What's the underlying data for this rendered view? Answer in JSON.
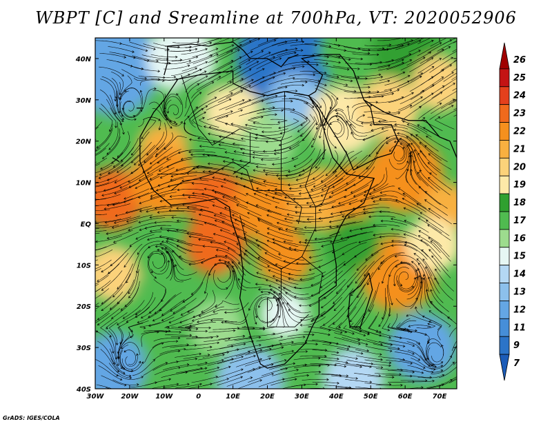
{
  "title": "WBPT [C] and Sreamline at 700hPa, VT: 2020052906",
  "credit": "GrADS: IGES/COLA",
  "map": {
    "lon_min": -30,
    "lon_max": 75,
    "lat_min": -40,
    "lat_max": 45,
    "lat_ticks": [
      {
        "value": 40,
        "label": "40N"
      },
      {
        "value": 30,
        "label": "30N"
      },
      {
        "value": 20,
        "label": "20N"
      },
      {
        "value": 10,
        "label": "10N"
      },
      {
        "value": 0,
        "label": "EQ"
      },
      {
        "value": -10,
        "label": "10S"
      },
      {
        "value": -20,
        "label": "20S"
      },
      {
        "value": -30,
        "label": "30S"
      },
      {
        "value": -40,
        "label": "40S"
      }
    ],
    "lon_ticks": [
      {
        "value": -30,
        "label": "30W"
      },
      {
        "value": -20,
        "label": "20W"
      },
      {
        "value": -10,
        "label": "10W"
      },
      {
        "value": 0,
        "label": "0"
      },
      {
        "value": 10,
        "label": "10E"
      },
      {
        "value": 20,
        "label": "20E"
      },
      {
        "value": 30,
        "label": "30E"
      },
      {
        "value": 40,
        "label": "40E"
      },
      {
        "value": 50,
        "label": "50E"
      },
      {
        "value": 60,
        "label": "60E"
      },
      {
        "value": 70,
        "label": "70E"
      }
    ]
  },
  "colorbar": {
    "levels": [
      {
        "label": "26",
        "color": "#a00000"
      },
      {
        "label": "25",
        "color": "#c41414"
      },
      {
        "label": "24",
        "color": "#e4401c"
      },
      {
        "label": "23",
        "color": "#f06a1c"
      },
      {
        "label": "22",
        "color": "#f5901e"
      },
      {
        "label": "21",
        "color": "#f8b040"
      },
      {
        "label": "20",
        "color": "#fbd27a"
      },
      {
        "label": "19",
        "color": "#fde9a8"
      },
      {
        "label": "18",
        "color": "#30a030"
      },
      {
        "label": "17",
        "color": "#50bb50"
      },
      {
        "label": "16",
        "color": "#9ddc8e"
      },
      {
        "label": "15",
        "color": "#e6f7f4"
      },
      {
        "label": "14",
        "color": "#b4d8f4"
      },
      {
        "label": "13",
        "color": "#8cc0ec"
      },
      {
        "label": "12",
        "color": "#64a6e4"
      },
      {
        "label": "11",
        "color": "#468ed8"
      },
      {
        "label": "9",
        "color": "#2c74c8"
      },
      {
        "label": "7",
        "color": "#1c5cb8"
      }
    ]
  },
  "regions": [
    {
      "lon": -25,
      "lat": 38,
      "r": 14,
      "level": "12"
    },
    {
      "lon": -5,
      "lat": 40,
      "r": 10,
      "level": "15"
    },
    {
      "lon": 25,
      "lat": 40,
      "r": 14,
      "level": "9"
    },
    {
      "lon": 45,
      "lat": 42,
      "r": 10,
      "level": "17"
    },
    {
      "lon": 60,
      "lat": 42,
      "r": 10,
      "level": "18"
    },
    {
      "lon": 70,
      "lat": 34,
      "r": 8,
      "level": "20"
    },
    {
      "lon": 0,
      "lat": 28,
      "r": 9,
      "level": "17"
    },
    {
      "lon": 10,
      "lat": 27,
      "r": 8,
      "level": "19"
    },
    {
      "lon": 28,
      "lat": 30,
      "r": 8,
      "level": "13"
    },
    {
      "lon": 42,
      "lat": 25,
      "r": 10,
      "level": "19"
    },
    {
      "lon": 55,
      "lat": 28,
      "r": 9,
      "level": "20"
    },
    {
      "lon": -18,
      "lat": 20,
      "r": 9,
      "level": "17"
    },
    {
      "lon": -10,
      "lat": 18,
      "r": 7,
      "level": "21"
    },
    {
      "lon": 20,
      "lat": 20,
      "r": 8,
      "level": "16"
    },
    {
      "lon": 60,
      "lat": 12,
      "r": 11,
      "level": "22"
    },
    {
      "lon": -25,
      "lat": 6,
      "r": 9,
      "level": "23"
    },
    {
      "lon": -10,
      "lat": 10,
      "r": 10,
      "level": "22"
    },
    {
      "lon": 5,
      "lat": 6,
      "r": 9,
      "level": "23"
    },
    {
      "lon": 20,
      "lat": 4,
      "r": 10,
      "level": "22"
    },
    {
      "lon": 35,
      "lat": 6,
      "r": 9,
      "level": "21"
    },
    {
      "lon": 45,
      "lat": 8,
      "r": 8,
      "level": "22"
    },
    {
      "lon": 72,
      "lat": 4,
      "r": 7,
      "level": "21"
    },
    {
      "lon": -25,
      "lat": -12,
      "r": 8,
      "level": "20"
    },
    {
      "lon": -12,
      "lat": -8,
      "r": 7,
      "level": "17"
    },
    {
      "lon": 5,
      "lat": -5,
      "r": 9,
      "level": "23"
    },
    {
      "lon": 25,
      "lat": -8,
      "r": 8,
      "level": "22"
    },
    {
      "lon": 12,
      "lat": -15,
      "r": 6,
      "level": "17"
    },
    {
      "lon": 58,
      "lat": -12,
      "r": 11,
      "level": "22"
    },
    {
      "lon": 45,
      "lat": -5,
      "r": 8,
      "level": "18"
    },
    {
      "lon": 68,
      "lat": -5,
      "r": 8,
      "level": "19"
    },
    {
      "lon": -18,
      "lat": -25,
      "r": 9,
      "level": "17"
    },
    {
      "lon": 5,
      "lat": -25,
      "r": 8,
      "level": "16"
    },
    {
      "lon": 25,
      "lat": -22,
      "r": 7,
      "level": "15"
    },
    {
      "lon": 45,
      "lat": -25,
      "r": 8,
      "level": "17"
    },
    {
      "lon": 65,
      "lat": -30,
      "r": 10,
      "level": "12"
    },
    {
      "lon": -25,
      "lat": -35,
      "r": 10,
      "level": "12"
    },
    {
      "lon": 15,
      "lat": -38,
      "r": 10,
      "level": "13"
    },
    {
      "lon": 45,
      "lat": -38,
      "r": 9,
      "level": "14"
    }
  ],
  "vortices": [
    {
      "lon": -20,
      "lat": 28,
      "r": 5
    },
    {
      "lon": -7,
      "lat": 27,
      "r": 4
    },
    {
      "lon": 40,
      "lat": 23,
      "r": 5
    },
    {
      "lon": 58,
      "lat": 17,
      "r": 5
    },
    {
      "lon": -12,
      "lat": -9,
      "r": 5
    },
    {
      "lon": 7,
      "lat": -12,
      "r": 4
    },
    {
      "lon": 60,
      "lat": -13,
      "r": 6
    },
    {
      "lon": -20,
      "lat": -33,
      "r": 6
    },
    {
      "lon": 69,
      "lat": -32,
      "r": 5
    },
    {
      "lon": 20,
      "lat": -20,
      "r": 4
    }
  ]
}
